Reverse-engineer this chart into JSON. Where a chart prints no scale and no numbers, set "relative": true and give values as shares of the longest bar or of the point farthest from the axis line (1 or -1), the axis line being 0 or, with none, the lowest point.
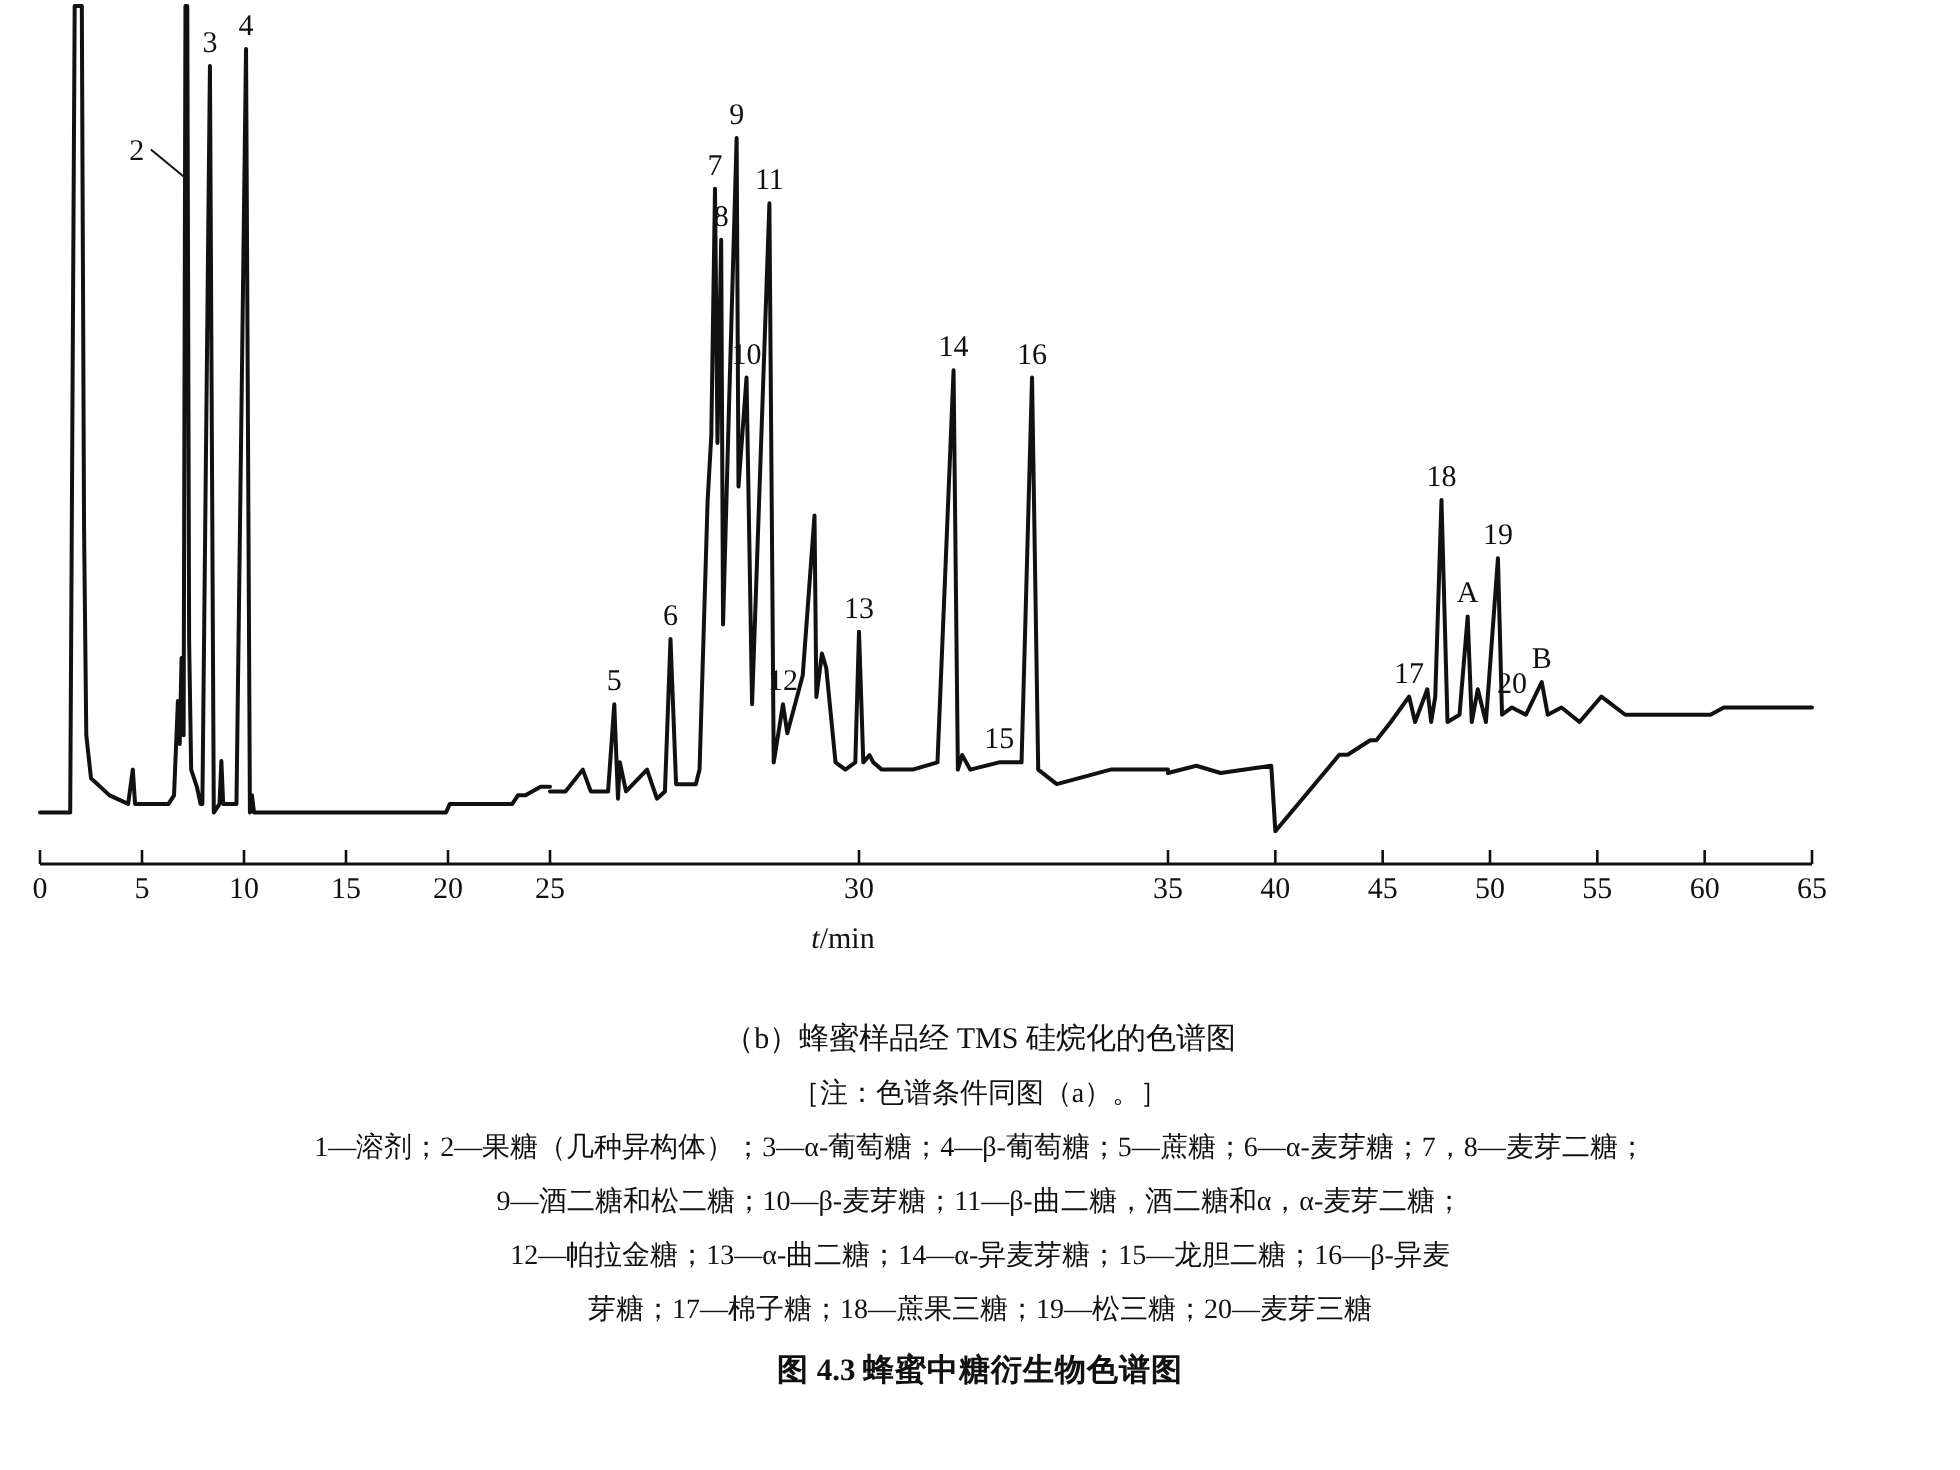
{
  "chart_data": [
    {
      "type": "line",
      "relative": true,
      "xlim": [
        0,
        25
      ],
      "xticks": [
        0,
        5,
        10,
        15,
        20,
        25
      ],
      "color": "#111111",
      "x": [
        0,
        1.48,
        1.7,
        2.05,
        2.16,
        2.27,
        2.5,
        3.41,
        4.32,
        4.55,
        4.66,
        6.3,
        6.57,
        6.76,
        6.85,
        6.94,
        7.04,
        7.13,
        7.22,
        7.31,
        7.41,
        7.69,
        7.87,
        7.96,
        8.33,
        8.52,
        8.8,
        8.89,
        8.98,
        9.63,
        10.1,
        10.29,
        10.39,
        10.49,
        13.14,
        14.12,
        19.9,
        20.09,
        23.15,
        23.43,
        23.8,
        24.54,
        25
      ],
      "values": [
        0.06,
        0.06,
        1,
        1,
        0.39,
        0.15,
        0.1,
        0.08,
        0.07,
        0.11,
        0.07,
        0.07,
        0.08,
        0.19,
        0.14,
        0.24,
        0.15,
        1,
        1,
        0.26,
        0.11,
        0.09,
        0.07,
        0.07,
        0.93,
        0.06,
        0.07,
        0.12,
        0.07,
        0.07,
        0.95,
        0.06,
        0.08,
        0.06,
        0.06,
        0.06,
        0.06,
        0.07,
        0.07,
        0.08,
        0.08,
        0.09,
        0.09
      ],
      "annotations": [
        {
          "text": "2",
          "x": 7.1,
          "y": 0.8
        },
        {
          "text": "3",
          "x": 8.33,
          "y": 0.93
        },
        {
          "text": "4",
          "x": 10.1,
          "y": 0.95
        }
      ]
    },
    {
      "type": "line",
      "relative": true,
      "xlabel": "*t*/min",
      "xlim": [
        25,
        35
      ],
      "xticks": [
        30,
        35
      ],
      "color": "#111111",
      "x": [
        25,
        25.25,
        25.53,
        25.66,
        25.94,
        26.04,
        26.1,
        26.13,
        26.23,
        26.57,
        26.73,
        26.86,
        26.95,
        27.04,
        27.36,
        27.42,
        27.55,
        27.61,
        27.67,
        27.71,
        27.77,
        27.8,
        27.89,
        28.02,
        28.05,
        28.18,
        28.27,
        28.55,
        28.62,
        28.77,
        28.84,
        29.09,
        29.28,
        29.31,
        29.4,
        29.47,
        29.62,
        29.78,
        29.94,
        30,
        30.07,
        30.17,
        30.23,
        30.37,
        30.53,
        30.87,
        31.27,
        31.53,
        31.6,
        31.67,
        31.8,
        32.27,
        32.63,
        32.8,
        32.9,
        33.2,
        34.07,
        34.87,
        35
      ],
      "values": [
        0.1,
        0.1,
        0.13,
        0.1,
        0.1,
        0.22,
        0.09,
        0.14,
        0.1,
        0.13,
        0.09,
        0.1,
        0.31,
        0.11,
        0.11,
        0.13,
        0.5,
        0.59,
        0.93,
        0.58,
        0.86,
        0.33,
        0.61,
        1,
        0.52,
        0.67,
        0.22,
        0.91,
        0.14,
        0.22,
        0.18,
        0.26,
        0.48,
        0.23,
        0.29,
        0.27,
        0.14,
        0.13,
        0.14,
        0.32,
        0.14,
        0.15,
        0.14,
        0.13,
        0.13,
        0.13,
        0.14,
        0.68,
        0.13,
        0.15,
        0.13,
        0.14,
        0.14,
        0.67,
        0.13,
        0.11,
        0.13,
        0.13,
        0.13
      ],
      "annotations": [
        {
          "text": "5",
          "x": 26.04,
          "y": 0.22
        },
        {
          "text": "6",
          "x": 26.95,
          "y": 0.31
        },
        {
          "text": "7",
          "x": 27.67,
          "y": 0.93
        },
        {
          "text": "8",
          "x": 27.77,
          "y": 0.86
        },
        {
          "text": "9",
          "x": 28.02,
          "y": 1
        },
        {
          "text": "10",
          "x": 28.18,
          "y": 0.67
        },
        {
          "text": "11",
          "x": 28.55,
          "y": 0.91
        },
        {
          "text": "12",
          "x": 28.77,
          "y": 0.22
        },
        {
          "text": "13",
          "x": 30,
          "y": 0.32
        },
        {
          "text": "14",
          "x": 31.53,
          "y": 0.68
        },
        {
          "text": "15",
          "x": 32.27,
          "y": 0.14
        },
        {
          "text": "16",
          "x": 32.8,
          "y": 0.67
        }
      ]
    },
    {
      "type": "line",
      "relative": true,
      "xlim": [
        35,
        65
      ],
      "xticks": [
        40,
        45,
        50,
        55,
        60,
        65
      ],
      "color": "#111111",
      "x": [
        35,
        36.32,
        37.45,
        39.81,
        40,
        42.98,
        43.37,
        44.42,
        44.71,
        45.38,
        46.23,
        46.51,
        47.08,
        47.26,
        47.45,
        47.74,
        48.02,
        48.58,
        48.96,
        49.15,
        49.43,
        49.81,
        50.37,
        50.56,
        51.02,
        51.67,
        52.41,
        52.69,
        53.33,
        54.17,
        55.19,
        56.3,
        57.87,
        58.8,
        59.72,
        60.27,
        60.89,
        62.68,
        65
      ],
      "values": [
        0.25,
        0.27,
        0.25,
        0.27,
        0.09,
        0.3,
        0.3,
        0.34,
        0.34,
        0.39,
        0.46,
        0.39,
        0.48,
        0.39,
        0.46,
        1,
        0.39,
        0.41,
        0.68,
        0.39,
        0.48,
        0.39,
        0.84,
        0.41,
        0.43,
        0.41,
        0.5,
        0.41,
        0.43,
        0.39,
        0.46,
        0.41,
        0.41,
        0.41,
        0.41,
        0.41,
        0.43,
        0.43,
        0.43
      ],
      "annotations": [
        {
          "text": "17",
          "x": 46.23,
          "y": 0.46
        },
        {
          "text": "18",
          "x": 47.74,
          "y": 1
        },
        {
          "text": "A",
          "x": 48.96,
          "y": 0.68
        },
        {
          "text": "19",
          "x": 50.37,
          "y": 0.84
        },
        {
          "text": "20",
          "x": 51.02,
          "y": 0.43
        },
        {
          "text": "B",
          "x": 52.41,
          "y": 0.5
        }
      ]
    },
    {
      "type": "other",
      "title": "图 4.3  蜂蜜中糖衍生物色谱图",
      "subtitle": "（b）蜂蜜样品经 TMS 硅烷化的色谱图",
      "annotations": [
        "［注：色谱条件同图（a）。］",
        "1—溶剂；2—果糖（几种异构体）；3—α-葡萄糖；4—β-葡萄糖；5—蔗糖；6—α-麦芽糖；7，8—麦芽二糖；",
        "9—酒二糖和松二糖；10—β-麦芽糖；11—β-曲二糖，酒二糖和α，α-麦芽二糖；",
        "12—帕拉金糖；13—α-曲二糖；14—α-异麦芽糖；15—龙胆二糖；16—β-异麦",
        "芽糖；17—棉子糖；18—蔗果三糖；19—松三糖；20—麦芽三糖"
      ]
    }
  ]
}
